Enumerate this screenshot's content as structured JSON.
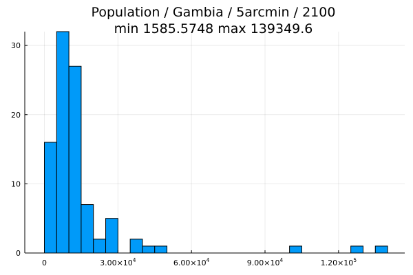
{
  "chart_data": {
    "type": "bar",
    "title": "Population / Gambia / 5arcmin / 2100",
    "subtitle": "min 1585.5748  max 139349.6",
    "xlabel": "",
    "ylabel": "",
    "xlim": [
      -8000,
      147000
    ],
    "ylim": [
      0,
      32
    ],
    "bin_width": 5000,
    "bins": [
      {
        "start": 0,
        "end": 5000,
        "count": 16
      },
      {
        "start": 5000,
        "end": 10000,
        "count": 32
      },
      {
        "start": 10000,
        "end": 15000,
        "count": 27
      },
      {
        "start": 15000,
        "end": 20000,
        "count": 7
      },
      {
        "start": 20000,
        "end": 25000,
        "count": 2
      },
      {
        "start": 25000,
        "end": 30000,
        "count": 5
      },
      {
        "start": 35000,
        "end": 40000,
        "count": 2
      },
      {
        "start": 40000,
        "end": 45000,
        "count": 1
      },
      {
        "start": 45000,
        "end": 50000,
        "count": 1
      },
      {
        "start": 100000,
        "end": 105000,
        "count": 1
      },
      {
        "start": 125000,
        "end": 130000,
        "count": 1
      },
      {
        "start": 135000,
        "end": 140000,
        "count": 1
      }
    ],
    "x_ticks": [
      {
        "value": 0,
        "mantissa": "0",
        "exponent": ""
      },
      {
        "value": 30000,
        "mantissa": "3.00×10",
        "exponent": "4"
      },
      {
        "value": 60000,
        "mantissa": "6.00×10",
        "exponent": "4"
      },
      {
        "value": 90000,
        "mantissa": "9.00×10",
        "exponent": "4"
      },
      {
        "value": 120000,
        "mantissa": "1.20×10",
        "exponent": "5"
      }
    ],
    "y_ticks": [
      {
        "value": 0,
        "label": "0"
      },
      {
        "value": 10,
        "label": "10"
      },
      {
        "value": 20,
        "label": "20"
      },
      {
        "value": 30,
        "label": "30"
      }
    ],
    "grid": true,
    "legend": "none",
    "bar_color": "#009AF9"
  }
}
